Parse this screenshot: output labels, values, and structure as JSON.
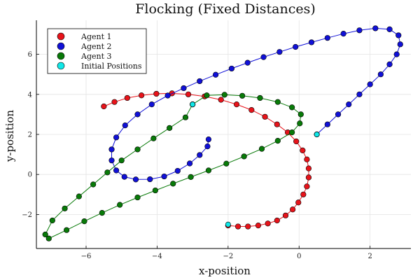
{
  "chart_data": {
    "type": "scatter",
    "title": "Flocking (Fixed Distances)",
    "xlabel": "x-position",
    "ylabel": "y-position",
    "xlim": [
      -7.4,
      3.15
    ],
    "ylim": [
      -3.7,
      7.7
    ],
    "xticks": [
      -6,
      -4,
      -2,
      0,
      2
    ],
    "xtick_labels": [
      "−6",
      "−4",
      "−2",
      "0",
      "2"
    ],
    "yticks": [
      -2,
      0,
      2,
      4,
      6
    ],
    "ytick_labels": [
      "−2",
      "0",
      "2",
      "4",
      "6"
    ],
    "grid": true,
    "legend_position": "top-left",
    "series": [
      {
        "name": "Agent 1",
        "color": "#e8131a",
        "points": [
          [
            -2.0,
            -2.55
          ],
          [
            -1.72,
            -2.6
          ],
          [
            -1.44,
            -2.6
          ],
          [
            -1.15,
            -2.55
          ],
          [
            -0.88,
            -2.45
          ],
          [
            -0.62,
            -2.3
          ],
          [
            -0.38,
            -2.05
          ],
          [
            -0.18,
            -1.75
          ],
          [
            -0.02,
            -1.4
          ],
          [
            0.12,
            -1.0
          ],
          [
            0.22,
            -0.6
          ],
          [
            0.27,
            -0.15
          ],
          [
            0.27,
            0.3
          ],
          [
            0.22,
            0.75
          ],
          [
            0.1,
            1.2
          ],
          [
            -0.08,
            1.65
          ],
          [
            -0.32,
            2.1
          ],
          [
            -0.62,
            2.5
          ],
          [
            -0.96,
            2.88
          ],
          [
            -1.34,
            3.22
          ],
          [
            -1.76,
            3.5
          ],
          [
            -2.2,
            3.73
          ],
          [
            -2.66,
            3.9
          ],
          [
            -3.12,
            4.0
          ],
          [
            -3.58,
            4.05
          ],
          [
            -4.02,
            4.03
          ],
          [
            -4.44,
            3.95
          ],
          [
            -4.84,
            3.82
          ],
          [
            -5.2,
            3.62
          ],
          [
            -5.5,
            3.4
          ]
        ]
      },
      {
        "name": "Agent 2",
        "color": "#1010d8",
        "points": [
          [
            0.5,
            2.0
          ],
          [
            0.8,
            2.5
          ],
          [
            1.1,
            3.0
          ],
          [
            1.4,
            3.5
          ],
          [
            1.7,
            4.0
          ],
          [
            2.0,
            4.5
          ],
          [
            2.3,
            5.0
          ],
          [
            2.55,
            5.5
          ],
          [
            2.75,
            6.0
          ],
          [
            2.85,
            6.5
          ],
          [
            2.8,
            6.95
          ],
          [
            2.55,
            7.25
          ],
          [
            2.15,
            7.3
          ],
          [
            1.7,
            7.2
          ],
          [
            1.25,
            7.03
          ],
          [
            0.8,
            6.82
          ],
          [
            0.35,
            6.6
          ],
          [
            -0.1,
            6.37
          ],
          [
            -0.55,
            6.12
          ],
          [
            -1.0,
            5.86
          ],
          [
            -1.45,
            5.58
          ],
          [
            -1.9,
            5.29
          ],
          [
            -2.35,
            4.98
          ],
          [
            -2.8,
            4.66
          ],
          [
            -3.25,
            4.31
          ],
          [
            -3.7,
            3.94
          ],
          [
            -4.15,
            3.5
          ],
          [
            -4.55,
            3.0
          ],
          [
            -4.9,
            2.45
          ],
          [
            -5.15,
            1.85
          ],
          [
            -5.28,
            1.25
          ],
          [
            -5.28,
            0.7
          ],
          [
            -5.15,
            0.2
          ],
          [
            -4.92,
            -0.12
          ],
          [
            -4.6,
            -0.25
          ],
          [
            -4.2,
            -0.24
          ],
          [
            -3.8,
            -0.1
          ],
          [
            -3.42,
            0.18
          ],
          [
            -3.08,
            0.55
          ],
          [
            -2.8,
            0.97
          ],
          [
            -2.58,
            1.4
          ],
          [
            -2.55,
            1.75
          ]
        ]
      },
      {
        "name": "Agent 3",
        "color": "#087a08",
        "points": [
          [
            -3.0,
            3.5
          ],
          [
            -2.6,
            3.95
          ],
          [
            -2.1,
            3.98
          ],
          [
            -1.6,
            3.93
          ],
          [
            -1.1,
            3.82
          ],
          [
            -0.6,
            3.62
          ],
          [
            -0.2,
            3.35
          ],
          [
            0.05,
            3.0
          ],
          [
            0.02,
            2.55
          ],
          [
            -0.2,
            2.1
          ],
          [
            -0.6,
            1.68
          ],
          [
            -1.05,
            1.28
          ],
          [
            -1.55,
            0.9
          ],
          [
            -2.05,
            0.54
          ],
          [
            -2.55,
            0.2
          ],
          [
            -3.05,
            -0.13
          ],
          [
            -3.55,
            -0.46
          ],
          [
            -4.05,
            -0.8
          ],
          [
            -4.55,
            -1.15
          ],
          [
            -5.05,
            -1.52
          ],
          [
            -5.55,
            -1.92
          ],
          [
            -6.05,
            -2.34
          ],
          [
            -6.55,
            -2.78
          ],
          [
            -7.05,
            -3.2
          ],
          [
            -7.15,
            -3.0
          ],
          [
            -6.95,
            -2.3
          ],
          [
            -6.6,
            -1.7
          ],
          [
            -6.2,
            -1.1
          ],
          [
            -5.8,
            -0.5
          ],
          [
            -5.4,
            0.1
          ],
          [
            -5.0,
            0.7
          ],
          [
            -4.55,
            1.25
          ],
          [
            -4.1,
            1.8
          ],
          [
            -3.65,
            2.32
          ],
          [
            -3.2,
            2.85
          ],
          [
            -3.0,
            3.5
          ]
        ]
      },
      {
        "name": "Initial Positions",
        "color": "#10e8e8",
        "points": [
          [
            -2.0,
            -2.5
          ],
          [
            0.5,
            2.0
          ],
          [
            -3.0,
            3.5
          ]
        ]
      }
    ]
  }
}
